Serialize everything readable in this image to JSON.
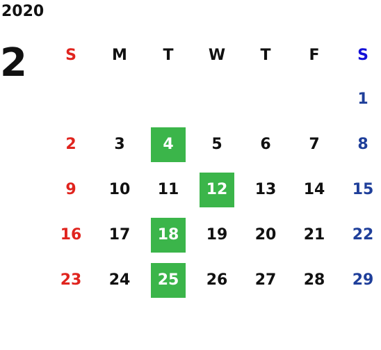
{
  "calendar": {
    "year": "2020",
    "month": "2",
    "weekdays": [
      "S",
      "M",
      "T",
      "W",
      "T",
      "F",
      "S"
    ],
    "weeks": [
      [
        "",
        "",
        "",
        "",
        "",
        "",
        "1"
      ],
      [
        "2",
        "3",
        "4",
        "5",
        "6",
        "7",
        "8"
      ],
      [
        "9",
        "10",
        "11",
        "12",
        "13",
        "14",
        "15"
      ],
      [
        "16",
        "17",
        "18",
        "19",
        "20",
        "21",
        "22"
      ],
      [
        "23",
        "24",
        "25",
        "26",
        "27",
        "28",
        "29"
      ]
    ],
    "highlighted_days": [
      "4",
      "12",
      "18",
      "25"
    ],
    "colors": {
      "sunday": "#e0241e",
      "saturday": "#1f3f9a",
      "saturday_header": "#1410d8",
      "highlight": "#3bb54a"
    }
  }
}
